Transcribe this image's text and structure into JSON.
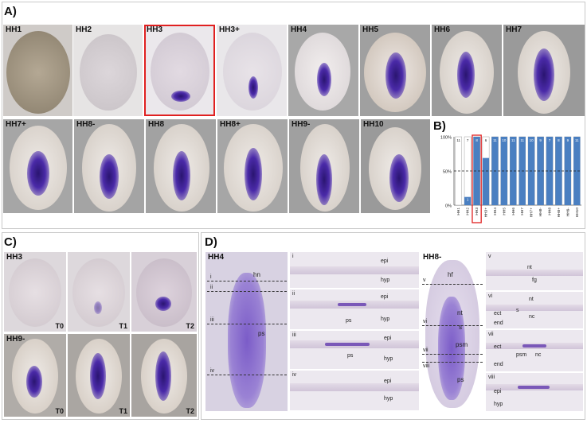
{
  "panelA": {
    "label": "A)",
    "row1": [
      "HH1",
      "HH2",
      "HH3",
      "HH3+",
      "HH4",
      "HH5",
      "HH6",
      "HH7"
    ],
    "row2": [
      "HH7+",
      "HH8-",
      "HH8",
      "HH8+",
      "HH9-",
      "HH10"
    ]
  },
  "panelB": {
    "label": "B)"
  },
  "panelC": {
    "label": "C)",
    "rows": [
      {
        "stage": "HH3",
        "times": [
          "T0",
          "T1",
          "T2"
        ]
      },
      {
        "stage": "HH9-",
        "times": [
          "T0",
          "T1",
          "T2"
        ]
      }
    ]
  },
  "panelD": {
    "label": "D)",
    "hh4": {
      "stage": "HH4",
      "labels": [
        "hn",
        "ps"
      ],
      "levels": [
        "i",
        "ii",
        "iii",
        "iv"
      ]
    },
    "hh8": {
      "stage": "HH8-",
      "labels": [
        "hf",
        "nt",
        "s",
        "psm",
        "ps"
      ],
      "levels": [
        "v",
        "vi",
        "vii",
        "viii"
      ]
    },
    "sections_left": [
      {
        "roman": "i",
        "labels": [
          "epi",
          "hyp"
        ]
      },
      {
        "roman": "ii",
        "labels": [
          "epi",
          "ps",
          "hyp"
        ]
      },
      {
        "roman": "iii",
        "labels": [
          "epi",
          "ps",
          "hyp"
        ]
      },
      {
        "roman": "iv",
        "labels": [
          "epi",
          "hyp"
        ]
      }
    ],
    "sections_right": [
      {
        "roman": "v",
        "labels": [
          "nt",
          "fg"
        ]
      },
      {
        "roman": "vi",
        "labels": [
          "nt",
          "ect",
          "s",
          "nc",
          "end"
        ]
      },
      {
        "roman": "vii",
        "labels": [
          "ect",
          "psm",
          "nc",
          "end"
        ]
      },
      {
        "roman": "viii",
        "labels": [
          "epi",
          "hyp"
        ]
      }
    ]
  },
  "chart_data": {
    "type": "bar",
    "categories": [
      "HH1",
      "HH2",
      "HH3",
      "HH3+",
      "HH4",
      "HH5",
      "HH6",
      "HH7",
      "HH7+",
      "HH8-",
      "HH8",
      "HH8+",
      "HH9-",
      "HH10"
    ],
    "values": [
      0,
      12,
      100,
      69,
      100,
      100,
      100,
      100,
      100,
      100,
      100,
      100,
      100,
      100
    ],
    "counts": [
      "11",
      "7",
      "8",
      "6",
      "11",
      "10",
      "11",
      "11",
      "10",
      "9",
      "7",
      "8",
      "9",
      "11"
    ],
    "lowcounts": [
      "",
      "1",
      "",
      "",
      "",
      "",
      "",
      "",
      "",
      "",
      "",
      "",
      "",
      ""
    ],
    "yticks": [
      "100%",
      "50%",
      "0%"
    ],
    "ylim": [
      0,
      100
    ],
    "reference_line": 50,
    "highlight": "HH3",
    "colors": {
      "bar": "#4a7fc1",
      "highlight": "#e02020"
    }
  }
}
